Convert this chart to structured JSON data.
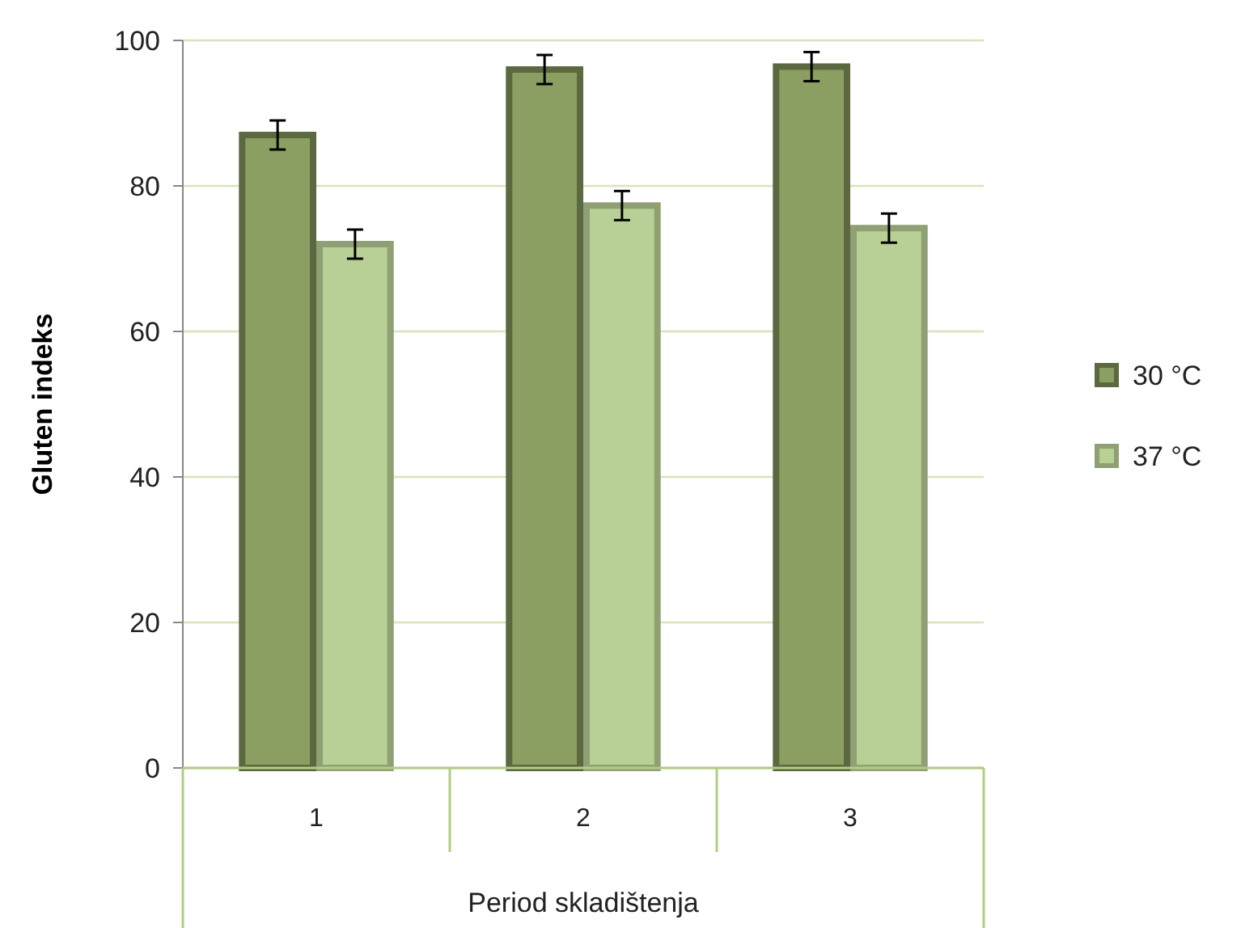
{
  "chart_data": {
    "type": "bar",
    "xlabel": "Period skladištenja",
    "ylabel": "Gluten indeks",
    "categories": [
      "1",
      "2",
      "3"
    ],
    "series": [
      {
        "name": "30 °C",
        "color": "#8c9f62",
        "values": [
          87,
          96,
          96.4
        ],
        "errors": [
          2,
          2,
          2
        ]
      },
      {
        "name": "37 °C",
        "color": "#b8cf95",
        "values": [
          72,
          77.3,
          74.2
        ],
        "errors": [
          2,
          2,
          2
        ]
      }
    ],
    "ylim": [
      0,
      100
    ],
    "yticks": [
      0,
      20,
      40,
      60,
      80,
      100
    ],
    "grid": "y",
    "legend": "right"
  }
}
